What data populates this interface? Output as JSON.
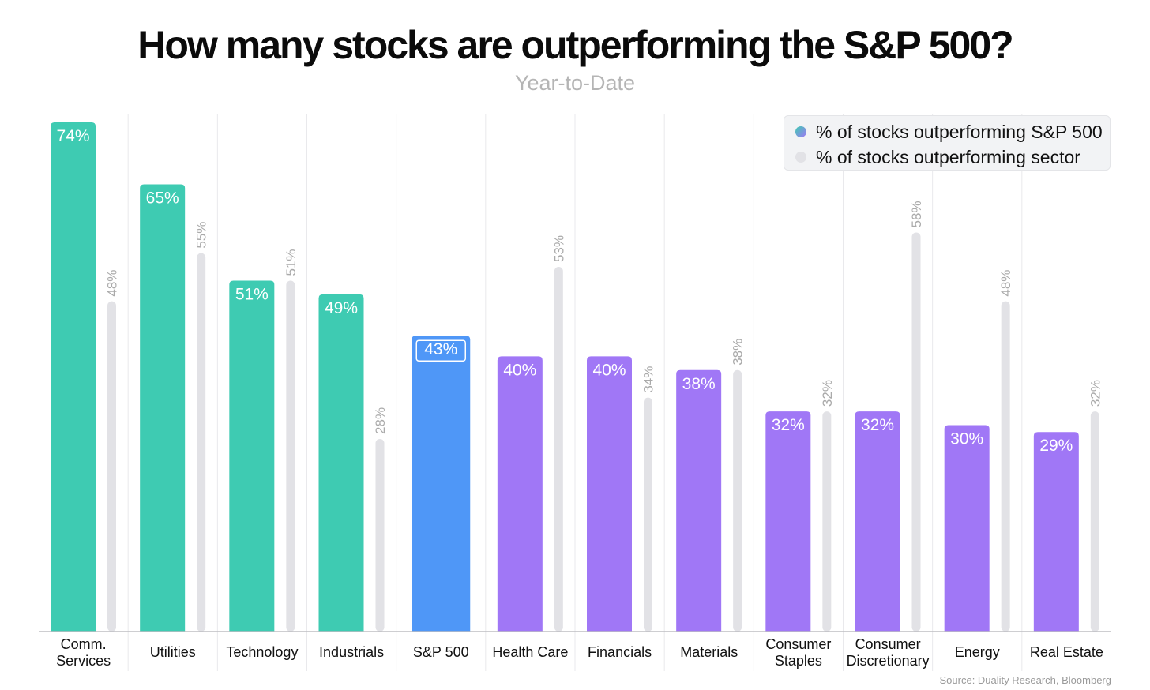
{
  "title": "How many stocks are outperforming the S&P 500?",
  "subtitle": "Year-to-Date",
  "source": "Source: Duality Research, Bloomberg",
  "legend": {
    "series1": "% of stocks outperforming S&P 500",
    "series2": "% of stocks outperforming sector"
  },
  "colors": {
    "outperforming_leader": "#3ecbb2",
    "benchmark": "#4f97f7",
    "underperforming": "#a077f6",
    "sector_bar": "#e2e2e6",
    "sector_label": "#aaaaaa",
    "legend_dot_gradient_start": "#3ecbb2",
    "legend_dot_gradient_end": "#a077f6"
  },
  "chart_data": {
    "type": "bar",
    "categories": [
      [
        "Comm.",
        "Services"
      ],
      [
        "Utilities"
      ],
      [
        "Technology"
      ],
      [
        "Industrials"
      ],
      [
        "S&P 500"
      ],
      [
        "Health Care"
      ],
      [
        "Financials"
      ],
      [
        "Materials"
      ],
      [
        "Consumer",
        "Staples"
      ],
      [
        "Consumer",
        "Discretionary"
      ],
      [
        "Energy"
      ],
      [
        "Real Estate"
      ]
    ],
    "series": [
      {
        "name": "% of stocks outperforming S&P 500",
        "values": [
          74,
          65,
          51,
          49,
          43,
          40,
          40,
          38,
          32,
          32,
          30,
          29
        ],
        "labels": [
          "74%",
          "65%",
          "51%",
          "49%",
          "43%",
          "40%",
          "40%",
          "38%",
          "32%",
          "32%",
          "30%",
          "29%"
        ],
        "color_groups": [
          "leader",
          "leader",
          "leader",
          "leader",
          "benchmark",
          "under",
          "under",
          "under",
          "under",
          "under",
          "under",
          "under"
        ]
      },
      {
        "name": "% of stocks outperforming sector",
        "values": [
          48,
          55,
          51,
          28,
          null,
          53,
          34,
          38,
          32,
          58,
          48,
          32
        ],
        "labels": [
          "48%",
          "55%",
          "51%",
          "28%",
          "",
          "53%",
          "34%",
          "38%",
          "32%",
          "58%",
          "48%",
          "32%"
        ]
      }
    ],
    "ylim": [
      0,
      74
    ],
    "grid": "vertical separators",
    "legend_position": "top-right"
  }
}
